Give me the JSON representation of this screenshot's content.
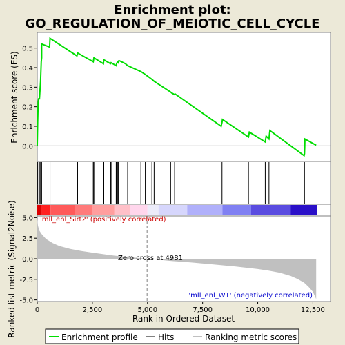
{
  "chart_data": [
    {
      "type": "line",
      "title": "Enrichment plot: GO_REGULATION_OF_MEIOTIC_CELL_CYCLE",
      "ylabel": "Enrichment score (ES)",
      "xlim": [
        0,
        13300
      ],
      "ylim": [
        -0.08,
        0.58
      ],
      "yticks": [
        0.0,
        0.1,
        0.2,
        0.3,
        0.4,
        0.5
      ],
      "line_color": "#00dd00",
      "grid": false,
      "series": [
        {
          "x": [
            0,
            20,
            40,
            60,
            100,
            150,
            150,
            180,
            200,
            200,
            220,
            560,
            580,
            1800,
            1830,
            2540,
            2570,
            3000,
            3020,
            3320,
            3350,
            3580,
            3600,
            3640,
            3680,
            3700,
            3730,
            4000,
            4100,
            4700,
            4900,
            5200,
            5300,
            6050,
            6100,
            6230,
            6260,
            8340,
            8380,
            8400,
            9580,
            9620,
            10340,
            10380,
            10510,
            10550,
            12100,
            12120,
            12130,
            12140,
            12650
          ],
          "values": [
            0.0,
            0.12,
            0.22,
            0.24,
            0.24,
            0.33,
            0.33,
            0.43,
            0.45,
            0.52,
            0.52,
            0.505,
            0.55,
            0.46,
            0.475,
            0.43,
            0.45,
            0.42,
            0.44,
            0.42,
            0.425,
            0.41,
            0.42,
            0.43,
            0.425,
            0.435,
            0.435,
            0.42,
            0.41,
            0.38,
            0.365,
            0.34,
            0.33,
            0.275,
            0.27,
            0.262,
            0.265,
            0.1,
            0.12,
            0.135,
            0.045,
            0.07,
            0.02,
            0.05,
            0.035,
            0.078,
            -0.05,
            -0.04,
            -0.01,
            0.035,
            0.003
          ]
        }
      ]
    },
    {
      "type": "hits",
      "xlim": [
        0,
        13300
      ],
      "hits": [
        20,
        100,
        150,
        180,
        200,
        580,
        1830,
        2540,
        2570,
        3000,
        3020,
        3320,
        3350,
        3580,
        3600,
        3640,
        3680,
        3700,
        4100,
        4700,
        4900,
        5200,
        5300,
        6050,
        6230,
        8340,
        8380,
        9580,
        10340,
        10510,
        12120
      ]
    },
    {
      "type": "heatmap",
      "xlim": [
        0,
        13300
      ],
      "segments": [
        {
          "x0": 0,
          "x1": 200,
          "color": "#dd0000"
        },
        {
          "x0": 200,
          "x1": 600,
          "color": "#ff2020"
        },
        {
          "x0": 600,
          "x1": 1700,
          "color": "#ff5a5a"
        },
        {
          "x0": 1700,
          "x1": 2500,
          "color": "#ff7a7a"
        },
        {
          "x0": 2500,
          "x1": 3500,
          "color": "#ff9e9e"
        },
        {
          "x0": 3500,
          "x1": 4200,
          "color": "#ffc0c8"
        },
        {
          "x0": 4200,
          "x1": 5000,
          "color": "#ffd6ec"
        },
        {
          "x0": 5000,
          "x1": 5500,
          "color": "#ececfa"
        },
        {
          "x0": 5500,
          "x1": 6800,
          "color": "#d6d6fc"
        },
        {
          "x0": 6800,
          "x1": 8400,
          "color": "#b0b0fa"
        },
        {
          "x0": 8400,
          "x1": 9700,
          "color": "#8080f2"
        },
        {
          "x0": 9700,
          "x1": 11500,
          "color": "#5a4ce0"
        },
        {
          "x0": 11500,
          "x1": 12700,
          "color": "#2a10c8"
        }
      ]
    },
    {
      "type": "area",
      "title": "",
      "xlabel": "Rank in Ordered Dataset",
      "ylabel": "Ranked list metric (Signal2Noise)",
      "xlim": [
        0,
        13300
      ],
      "ylim": [
        -5.2,
        5.2
      ],
      "xticks": [
        0,
        2500,
        5000,
        7500,
        10000,
        12500
      ],
      "xtick_labels": [
        "0",
        "2,500",
        "5,000",
        "7,500",
        "10,000",
        "12,500"
      ],
      "yticks": [
        -5.0,
        -2.5,
        0.0,
        2.5,
        5.0
      ],
      "ytick_labels": [
        "-5.0",
        "-2.5",
        "0.0",
        "2.5",
        "5.0"
      ],
      "fill_color": "#c0c0c0",
      "series": [
        {
          "x": [
            0,
            30,
            100,
            200,
            400,
            700,
            1000,
            1500,
            2000,
            2500,
            3000,
            3500,
            4000,
            4500,
            4981,
            5500,
            6000,
            7000,
            8000,
            9000,
            10000,
            10500,
            11000,
            11500,
            11800,
            12100,
            12300,
            12500,
            12650
          ],
          "values": [
            4.9,
            4.0,
            3.4,
            3.0,
            2.4,
            1.9,
            1.55,
            1.2,
            0.95,
            0.75,
            0.55,
            0.38,
            0.24,
            0.12,
            0.0,
            -0.12,
            -0.25,
            -0.45,
            -0.7,
            -0.95,
            -1.25,
            -1.45,
            -1.7,
            -2.1,
            -2.45,
            -2.9,
            -3.4,
            -4.0,
            -4.9
          ]
        }
      ],
      "annotations": {
        "positive": "'mll_enl_Sirt2' (positively correlated)",
        "negative": "'mll_enl_WT' (negatively correlated)",
        "zero_cross": "Zero cross at 4981",
        "zero_cross_x": 4981
      }
    }
  ],
  "legend": {
    "placement": "bottom",
    "items": [
      {
        "label": "Enrichment profile",
        "color": "#00dd00"
      },
      {
        "label": "Hits",
        "color": "#000000"
      },
      {
        "label": "Ranking metric scores",
        "color": "#c0c0c0"
      }
    ]
  }
}
